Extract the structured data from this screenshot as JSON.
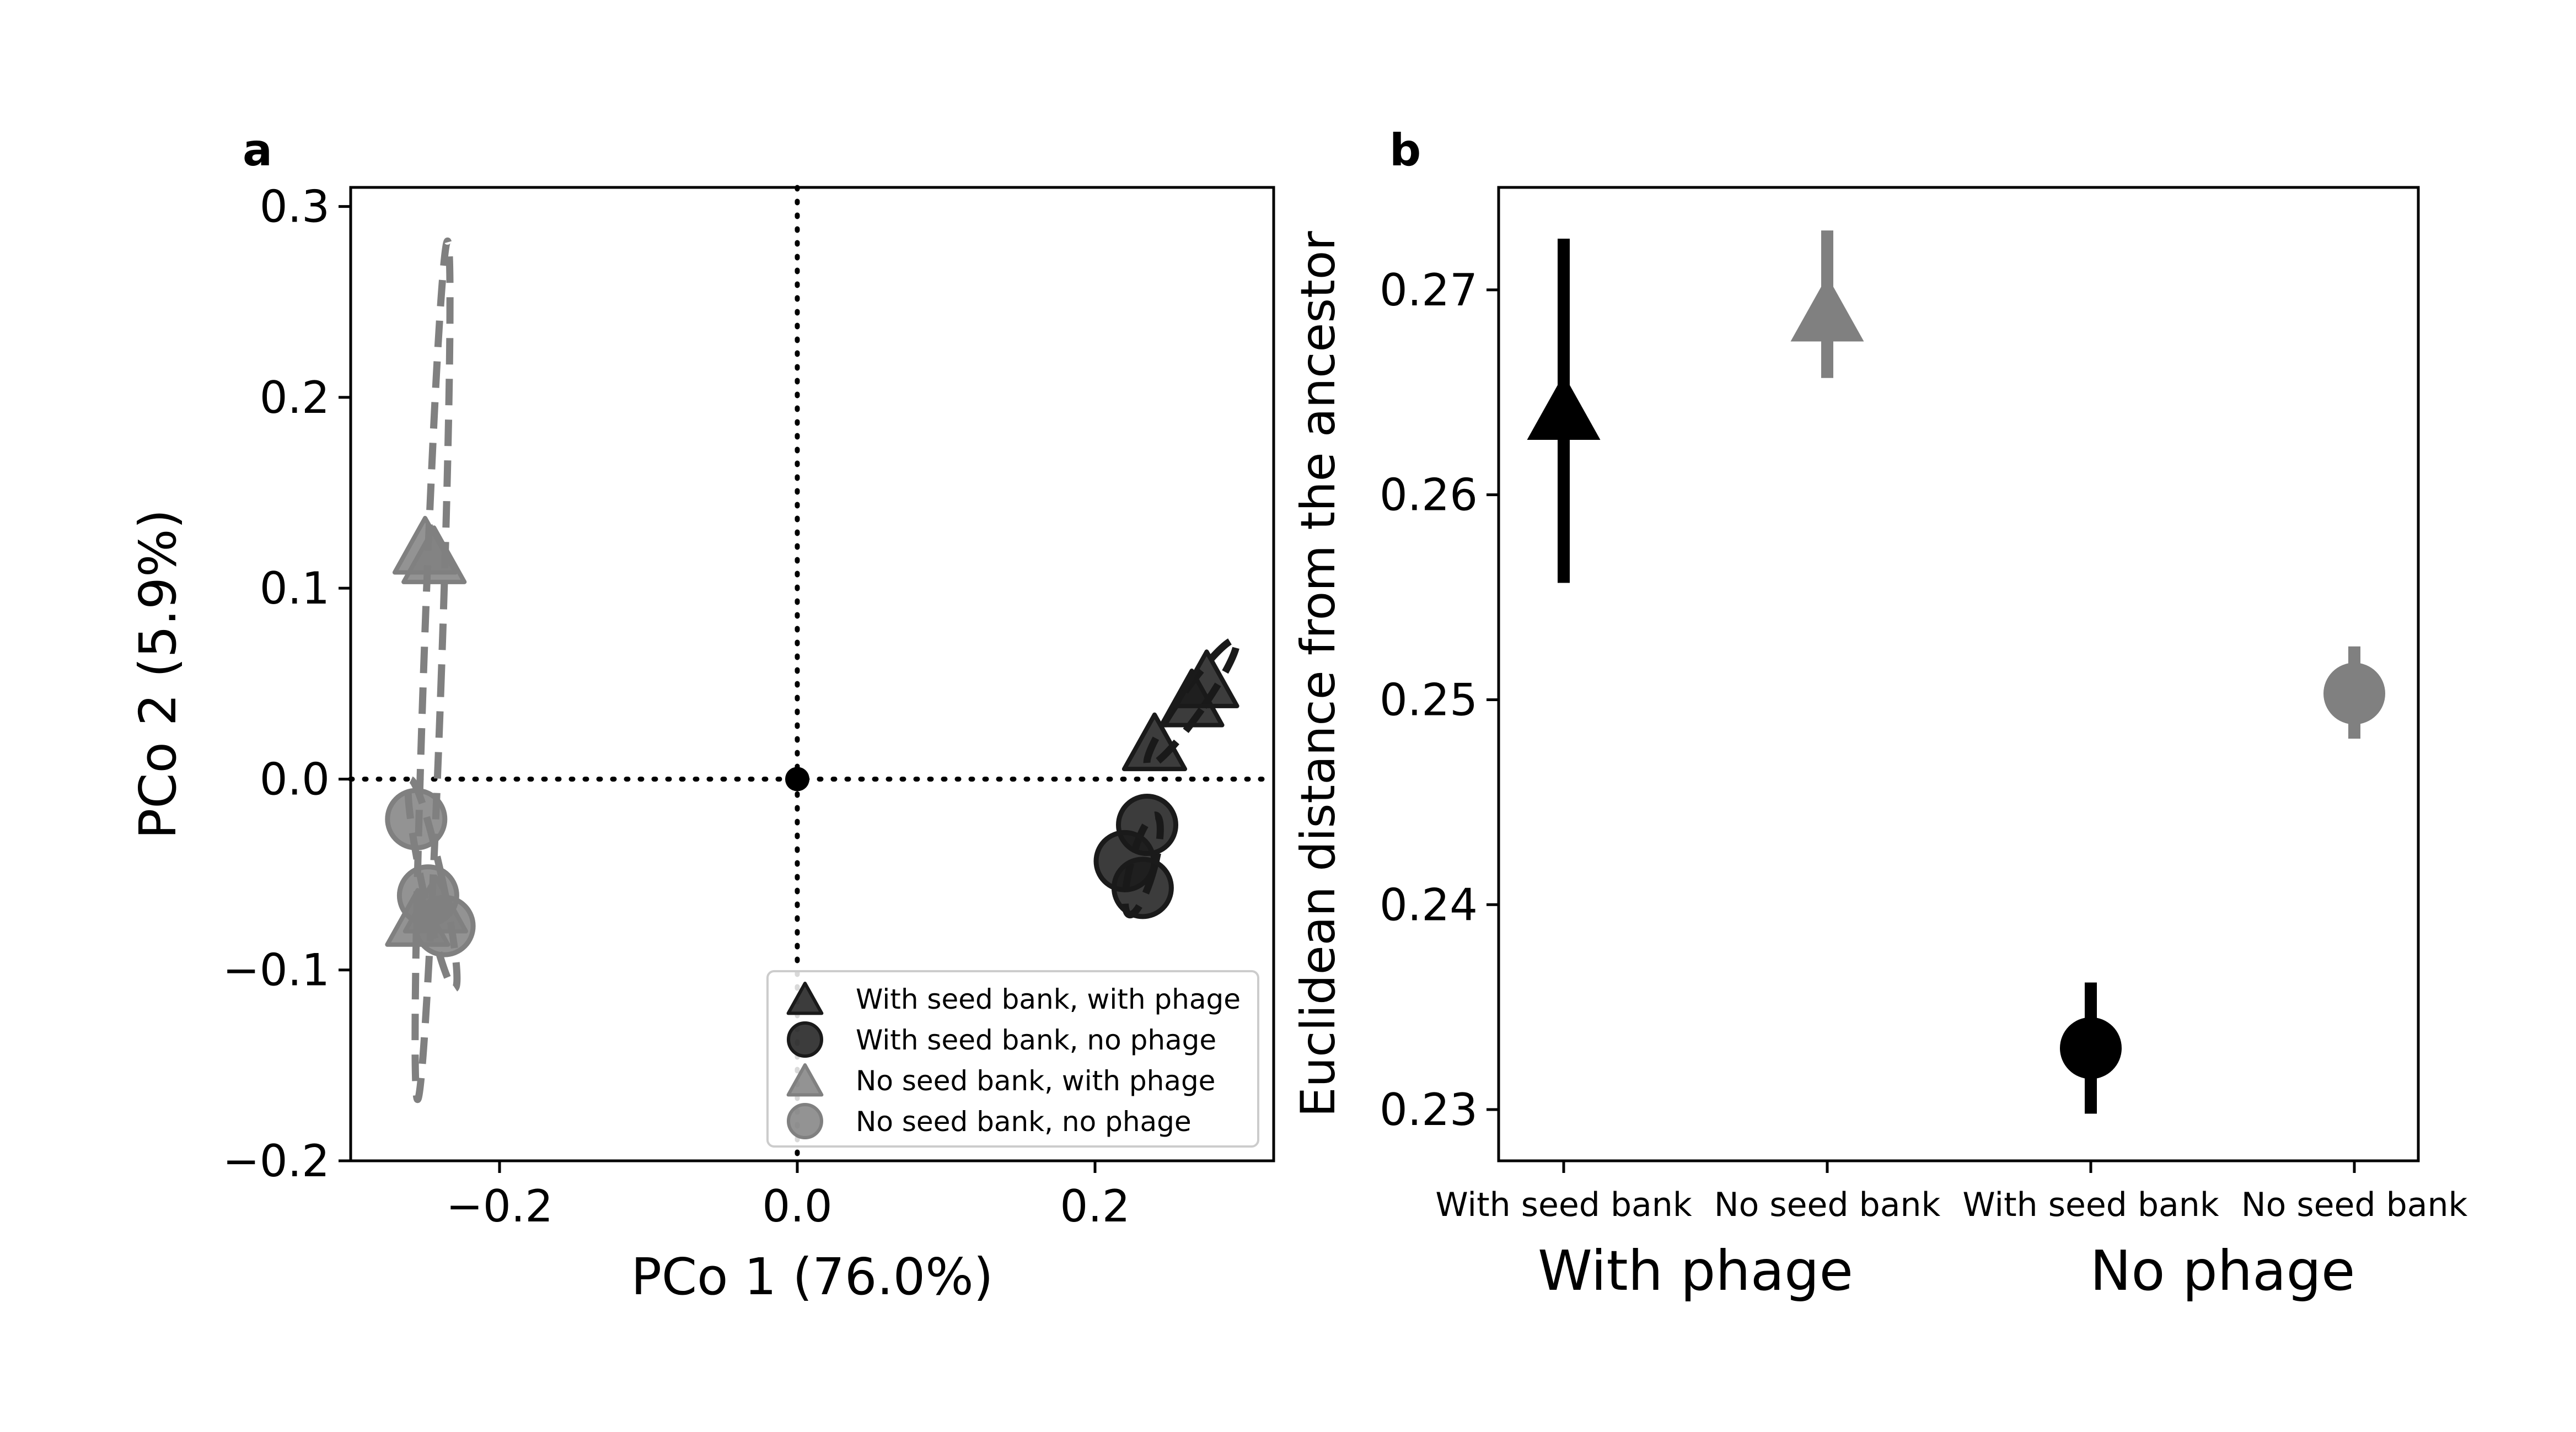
{
  "chart_data": [
    {
      "panel_label": "a",
      "type": "scatter",
      "xlabel": "PCo 1 (76.0%)",
      "ylabel": "PCo 2 (5.9%)",
      "xlim": [
        -0.3,
        0.32
      ],
      "ylim": [
        -0.2,
        0.31
      ],
      "xticks": [
        -0.2,
        0.0,
        0.2
      ],
      "xtick_labels": [
        "−0.2",
        "0.0",
        "0.2"
      ],
      "yticks": [
        -0.2,
        -0.1,
        0.0,
        0.1,
        0.2,
        0.3
      ],
      "ytick_labels": [
        "−0.2",
        "−0.1",
        "0.0",
        "0.1",
        "0.2",
        "0.3"
      ],
      "origin_point": [
        0.0,
        0.0
      ],
      "reference_lines": [
        "x=0 dotted",
        "y=0 dotted"
      ],
      "legend_position": "lower-right",
      "series": [
        {
          "name": "With seed bank, with phage",
          "marker": "triangle",
          "color": "#1a1a1a",
          "points": [
            [
              0.24,
              0.017
            ],
            [
              0.265,
              0.04
            ],
            [
              0.275,
              0.05
            ]
          ],
          "ellipse": {
            "cx": 0.265,
            "cy": 0.04,
            "rx": 0.008,
            "ry": 0.04,
            "angle": 35
          }
        },
        {
          "name": "With seed bank, no phage",
          "marker": "circle",
          "color": "#1a1a1a",
          "points": [
            [
              0.235,
              -0.024
            ],
            [
              0.22,
              -0.043
            ],
            [
              0.232,
              -0.057
            ]
          ],
          "ellipse": {
            "cx": 0.232,
            "cy": -0.045,
            "rx": 0.008,
            "ry": 0.027,
            "angle": 15
          }
        },
        {
          "name": "No seed bank, with phage",
          "marker": "triangle",
          "color": "#808080",
          "points": [
            [
              -0.25,
              0.12
            ],
            [
              -0.244,
              0.115
            ],
            [
              -0.255,
              -0.075
            ],
            [
              -0.243,
              -0.068
            ]
          ],
          "ellipse": {
            "cx": -0.245,
            "cy": 0.057,
            "rx": 0.006,
            "ry": 0.225,
            "angle": 2
          }
        },
        {
          "name": "No seed bank, no phage",
          "marker": "circle",
          "color": "#808080",
          "points": [
            [
              -0.256,
              -0.021
            ],
            [
              -0.248,
              -0.061
            ],
            [
              -0.237,
              -0.077
            ]
          ],
          "ellipse": {
            "cx": -0.245,
            "cy": -0.055,
            "rx": 0.007,
            "ry": 0.056,
            "angle": -12
          }
        }
      ]
    },
    {
      "panel_label": "b",
      "type": "scatter",
      "ylabel": "Euclidean distance from the ancestor",
      "ylim": [
        0.2275,
        0.275
      ],
      "yticks": [
        0.23,
        0.24,
        0.25,
        0.26,
        0.27
      ],
      "ytick_labels": [
        "0.23",
        "0.24",
        "0.25",
        "0.26",
        "0.27"
      ],
      "categories": [
        "With seed bank",
        "No seed bank",
        "With seed bank",
        "No seed bank"
      ],
      "groups": [
        "With phage",
        "No phage"
      ],
      "points": [
        {
          "category": "With seed bank",
          "group": "With phage",
          "value": 0.264,
          "low": 0.2557,
          "high": 0.2725,
          "marker": "triangle",
          "color": "#000000"
        },
        {
          "category": "No seed bank",
          "group": "With phage",
          "value": 0.2688,
          "low": 0.2657,
          "high": 0.2729,
          "marker": "triangle",
          "color": "#808080"
        },
        {
          "category": "With seed bank",
          "group": "No phage",
          "value": 0.233,
          "low": 0.2298,
          "high": 0.2362,
          "marker": "circle",
          "color": "#000000"
        },
        {
          "category": "No seed bank",
          "group": "No phage",
          "value": 0.2503,
          "low": 0.2481,
          "high": 0.2526,
          "marker": "circle",
          "color": "#808080"
        }
      ]
    }
  ]
}
